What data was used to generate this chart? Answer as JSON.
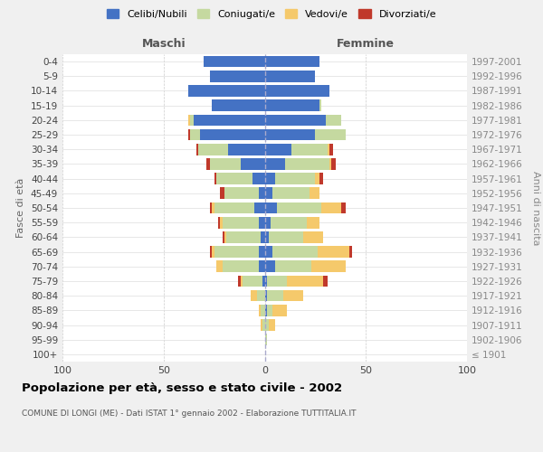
{
  "age_groups": [
    "100+",
    "95-99",
    "90-94",
    "85-89",
    "80-84",
    "75-79",
    "70-74",
    "65-69",
    "60-64",
    "55-59",
    "50-54",
    "45-49",
    "40-44",
    "35-39",
    "30-34",
    "25-29",
    "20-24",
    "15-19",
    "10-14",
    "5-9",
    "0-4"
  ],
  "birth_years": [
    "≤ 1901",
    "1902-1906",
    "1907-1911",
    "1912-1916",
    "1917-1921",
    "1922-1926",
    "1927-1931",
    "1932-1936",
    "1937-1941",
    "1942-1946",
    "1947-1951",
    "1952-1956",
    "1957-1961",
    "1962-1966",
    "1967-1971",
    "1972-1976",
    "1977-1981",
    "1982-1986",
    "1987-1991",
    "1992-1996",
    "1997-2001"
  ],
  "male_celibi": [
    0,
    0,
    0,
    0,
    0,
    1,
    3,
    3,
    2,
    3,
    5,
    3,
    6,
    12,
    18,
    32,
    35,
    26,
    38,
    27,
    30
  ],
  "male_coniugati": [
    0,
    0,
    1,
    2,
    4,
    10,
    18,
    22,
    17,
    18,
    20,
    17,
    18,
    15,
    15,
    5,
    2,
    0,
    0,
    0,
    0
  ],
  "male_vedovi": [
    0,
    0,
    1,
    1,
    3,
    1,
    3,
    1,
    1,
    1,
    1,
    0,
    0,
    0,
    0,
    0,
    1,
    0,
    0,
    0,
    0
  ],
  "male_divorziati": [
    0,
    0,
    0,
    0,
    0,
    1,
    0,
    1,
    1,
    1,
    1,
    2,
    1,
    2,
    1,
    1,
    0,
    0,
    0,
    0,
    0
  ],
  "female_celibi": [
    0,
    0,
    0,
    1,
    1,
    1,
    5,
    4,
    2,
    3,
    6,
    4,
    5,
    10,
    13,
    25,
    30,
    27,
    32,
    25,
    27
  ],
  "female_coniugati": [
    0,
    1,
    2,
    3,
    8,
    10,
    18,
    22,
    17,
    18,
    22,
    18,
    20,
    22,
    18,
    15,
    8,
    1,
    0,
    0,
    0
  ],
  "female_vedovi": [
    0,
    0,
    3,
    7,
    10,
    18,
    17,
    16,
    10,
    6,
    10,
    5,
    2,
    1,
    1,
    0,
    0,
    0,
    0,
    0,
    0
  ],
  "female_divorziati": [
    0,
    0,
    0,
    0,
    0,
    2,
    0,
    1,
    0,
    0,
    2,
    0,
    2,
    2,
    2,
    0,
    0,
    0,
    0,
    0,
    0
  ],
  "color_celibi": "#4472c4",
  "color_coniugati": "#c5d9a0",
  "color_vedovi": "#f5c96b",
  "color_divorziati": "#c0392b",
  "title": "Popolazione per età, sesso e stato civile - 2002",
  "subtitle": "COMUNE DI LONGI (ME) - Dati ISTAT 1° gennaio 2002 - Elaborazione TUTTITALIA.IT",
  "xlabel_left": "Maschi",
  "xlabel_right": "Femmine",
  "ylabel_left": "Fasce di età",
  "ylabel_right": "Anni di nascita",
  "xlim": 100,
  "bg_color": "#f0f0f0",
  "plot_bg": "#ffffff"
}
